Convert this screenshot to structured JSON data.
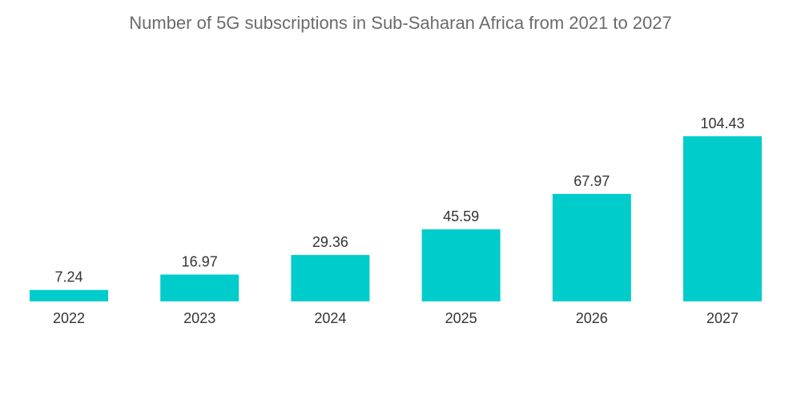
{
  "chart_data": {
    "type": "bar",
    "title": "Number of 5G subscriptions in Sub-Saharan Africa from 2021 to 2027",
    "xlabel": "",
    "ylabel": "",
    "categories": [
      "2022",
      "2023",
      "2024",
      "2025",
      "2026",
      "2027"
    ],
    "values": [
      7.24,
      16.97,
      29.36,
      45.59,
      67.97,
      104.43
    ],
    "value_labels": [
      "7.24",
      "16.97",
      "29.36",
      "45.59",
      "67.97",
      "104.43"
    ],
    "ylim": [
      0,
      104.43
    ],
    "grid": false,
    "legend": "none",
    "bar_color": "#00cccc"
  }
}
